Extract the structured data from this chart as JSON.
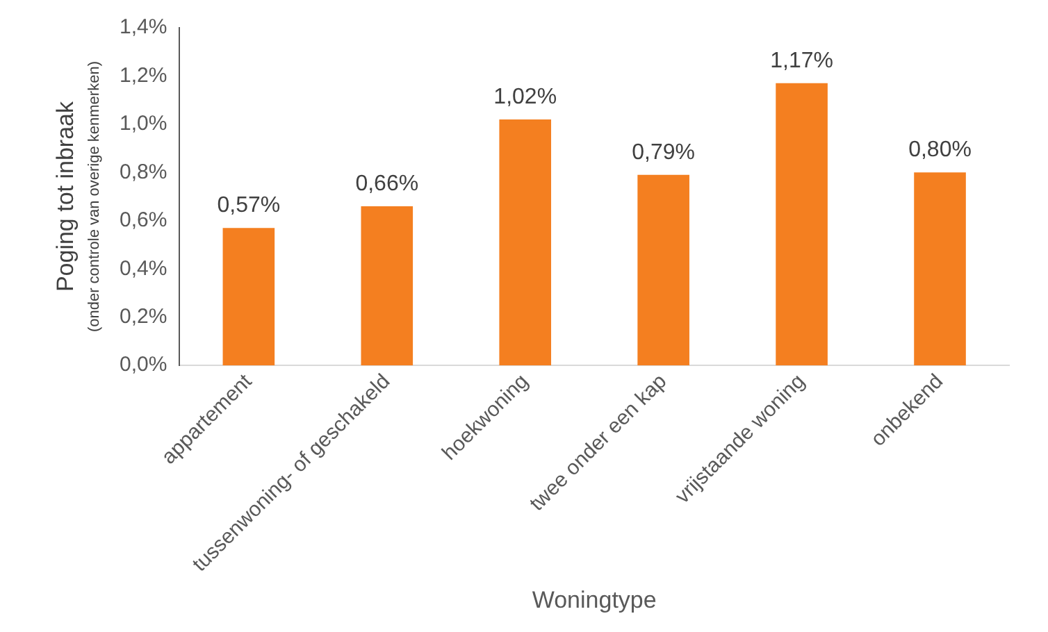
{
  "chart_data": {
    "type": "bar",
    "xlabel": "Woningtype",
    "ylabel": "Poging tot inbraak\n(onder controle van overige kenmerken)",
    "categories": [
      "appartement",
      "tussenwoning- of geschakeld",
      "hoekwoning",
      "twee onder een kap",
      "vrijstaande woning",
      "onbekend"
    ],
    "values": [
      0.57,
      0.66,
      1.02,
      0.79,
      1.17,
      0.8
    ],
    "value_labels": [
      "0,57%",
      "0,66%",
      "1,02%",
      "0,79%",
      "1,17%",
      "0,80%"
    ],
    "color": "#f47f20",
    "ylim": [
      0,
      1.4
    ],
    "yticks": [
      {
        "value": 0,
        "label": "0,0%"
      },
      {
        "value": 0.2,
        "label": "0,2%"
      },
      {
        "value": 0.4,
        "label": "0,4%"
      },
      {
        "value": 0.6,
        "label": "0,6%"
      },
      {
        "value": 0.8,
        "label": "0,8%"
      },
      {
        "value": 1.0,
        "label": "1,0%"
      },
      {
        "value": 1.2,
        "label": "1,2%"
      },
      {
        "value": 1.4,
        "label": "1,4%"
      }
    ],
    "grid": false,
    "legend": false
  }
}
